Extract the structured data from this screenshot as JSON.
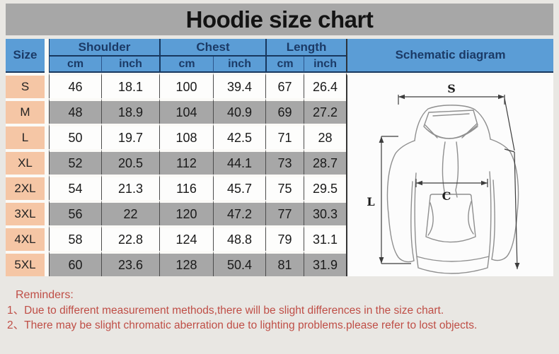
{
  "title": "Hoodie size chart",
  "table": {
    "corner_header": "Size",
    "group_headers": [
      "Shoulder",
      "Chest",
      "Length"
    ],
    "schematic_header": "Schematic diagram",
    "units": [
      "cm",
      "inch",
      "cm",
      "inch",
      "cm",
      "inch"
    ],
    "rows": [
      {
        "size": "S",
        "values": [
          "46",
          "18.1",
          "100",
          "39.4",
          "67",
          "26.4"
        ]
      },
      {
        "size": "M",
        "values": [
          "48",
          "18.9",
          "104",
          "40.9",
          "69",
          "27.2"
        ]
      },
      {
        "size": "L",
        "values": [
          "50",
          "19.7",
          "108",
          "42.5",
          "71",
          "28"
        ]
      },
      {
        "size": "XL",
        "values": [
          "52",
          "20.5",
          "112",
          "44.1",
          "73",
          "28.7"
        ]
      },
      {
        "size": "2XL",
        "values": [
          "54",
          "21.3",
          "116",
          "45.7",
          "75",
          "29.5"
        ]
      },
      {
        "size": "3XL",
        "values": [
          "56",
          "22",
          "120",
          "47.2",
          "77",
          "30.3"
        ]
      },
      {
        "size": "4XL",
        "values": [
          "58",
          "22.8",
          "124",
          "48.8",
          "79",
          "31.1"
        ]
      },
      {
        "size": "5XL",
        "values": [
          "60",
          "23.6",
          "128",
          "50.4",
          "81",
          "31.9"
        ]
      }
    ]
  },
  "schematic": {
    "shoulder_label": "S",
    "chest_label": "C",
    "length_label": "L"
  },
  "reminders": {
    "heading": "Reminders:",
    "items": [
      "1、Due to different measurement methods,there will be slight differences in the size chart.",
      "2、There may be slight chromatic aberration due to lighting problems.please refer to lost objects."
    ]
  },
  "chart_data": {
    "type": "table",
    "title": "Hoodie size chart",
    "columns": [
      "Size",
      "Shoulder cm",
      "Shoulder inch",
      "Chest cm",
      "Chest inch",
      "Length cm",
      "Length inch"
    ],
    "rows": [
      [
        "S",
        46,
        18.1,
        100,
        39.4,
        67,
        26.4
      ],
      [
        "M",
        48,
        18.9,
        104,
        40.9,
        69,
        27.2
      ],
      [
        "L",
        50,
        19.7,
        108,
        42.5,
        71,
        28
      ],
      [
        "XL",
        52,
        20.5,
        112,
        44.1,
        73,
        28.7
      ],
      [
        "2XL",
        54,
        21.3,
        116,
        45.7,
        75,
        29.5
      ],
      [
        "3XL",
        56,
        22,
        120,
        47.2,
        77,
        30.3
      ],
      [
        "4XL",
        58,
        22.8,
        124,
        48.8,
        79,
        31.1
      ],
      [
        "5XL",
        60,
        23.6,
        128,
        50.4,
        81,
        31.9
      ]
    ]
  },
  "colors": {
    "header_blue": "#5b9dd6",
    "header_text_navy": "#1b3a66",
    "size_cell_peach": "#f5c6a5",
    "row_gray": "#a7a7a7",
    "row_white": "#fdfdfc",
    "title_band_gray": "#a7a7a7",
    "reminder_red": "#bf4e46",
    "page_background": "#e9e7e3"
  }
}
